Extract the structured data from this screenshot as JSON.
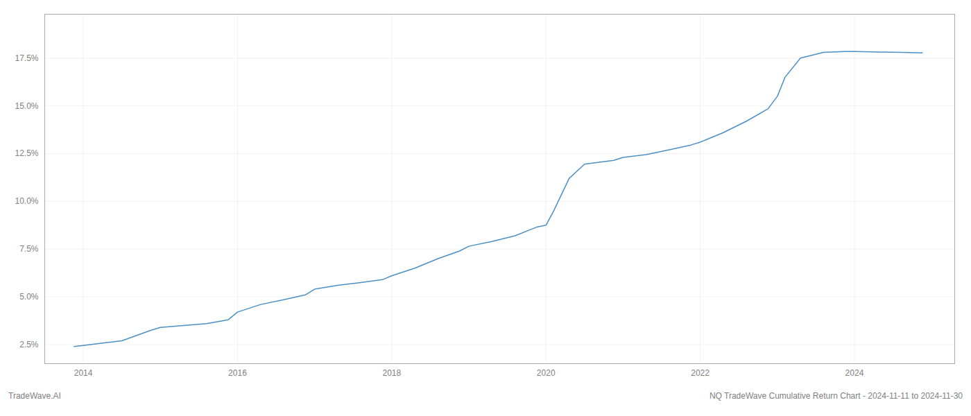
{
  "chart_data": {
    "type": "line",
    "title": "NQ TradeWave Cumulative Return Chart - 2024-11-11 to 2024-11-30",
    "annotations": [
      "TradeWave.AI"
    ],
    "x": [
      2013.88,
      2014.0,
      2014.2,
      2014.5,
      2014.88,
      2015.0,
      2015.3,
      2015.6,
      2015.88,
      2016.0,
      2016.3,
      2016.6,
      2016.88,
      2017.0,
      2017.3,
      2017.6,
      2017.88,
      2018.0,
      2018.3,
      2018.6,
      2018.88,
      2019.0,
      2019.3,
      2019.6,
      2019.88,
      2020.0,
      2020.1,
      2020.3,
      2020.5,
      2020.88,
      2021.0,
      2021.3,
      2021.6,
      2021.88,
      2022.0,
      2022.3,
      2022.6,
      2022.88,
      2023.0,
      2023.1,
      2023.3,
      2023.6,
      2023.88,
      2024.0,
      2024.3,
      2024.6,
      2024.88
    ],
    "values": [
      2.4,
      2.45,
      2.55,
      2.7,
      3.25,
      3.4,
      3.5,
      3.6,
      3.8,
      4.2,
      4.6,
      4.85,
      5.1,
      5.4,
      5.6,
      5.75,
      5.9,
      6.1,
      6.5,
      7.0,
      7.4,
      7.65,
      7.9,
      8.2,
      8.65,
      8.75,
      9.5,
      11.2,
      11.95,
      12.15,
      12.3,
      12.45,
      12.7,
      12.95,
      13.1,
      13.6,
      14.2,
      14.85,
      15.5,
      16.5,
      17.5,
      17.8,
      17.85,
      17.85,
      17.82,
      17.8,
      17.78
    ],
    "color": "#4a90c4",
    "xlim": [
      2013.5,
      2025.3
    ],
    "ylim": [
      1.5,
      19.8
    ],
    "xticks": [
      2014,
      2016,
      2018,
      2020,
      2022,
      2024
    ],
    "yticks": [
      {
        "value": 2.5,
        "label": "2.5%"
      },
      {
        "value": 5.0,
        "label": "5.0%"
      },
      {
        "value": 7.5,
        "label": "7.5%"
      },
      {
        "value": 10.0,
        "label": "10.0%"
      },
      {
        "value": 12.5,
        "label": "12.5%"
      },
      {
        "value": 15.0,
        "label": "15.0%"
      },
      {
        "value": 17.5,
        "label": "17.5%"
      }
    ],
    "grid": true
  }
}
